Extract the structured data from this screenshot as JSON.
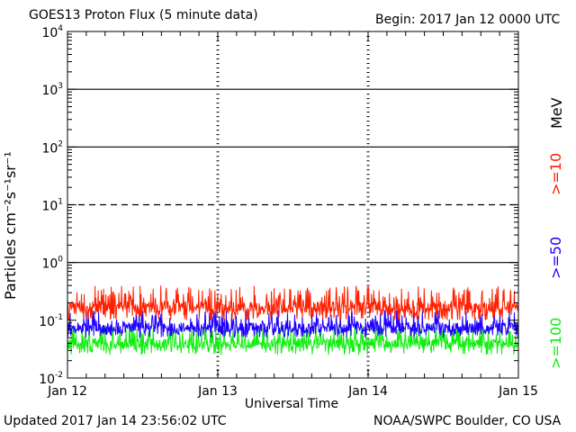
{
  "header": {
    "title": "GOES13 Proton Flux (5 minute data)",
    "begin": "Begin: 2017 Jan 12 0000 UTC"
  },
  "footer": {
    "updated": "Updated 2017 Jan 14 23:56:02 UTC",
    "credit": "NOAA/SWPC Boulder, CO USA"
  },
  "chart_data": {
    "type": "line",
    "title": "GOES13 Proton Flux (5 minute data)",
    "xlabel": "Universal Time",
    "ylabel": "Particles cm⁻²s⁻¹sr⁻¹",
    "yscale": "log",
    "ylim": [
      0.01,
      10000
    ],
    "xlim": [
      0,
      3
    ],
    "x_unit": "days since 2017 Jan 12 0000 UTC",
    "x_tick_labels": [
      "Jan 12",
      "Jan 13",
      "Jan 14",
      "Jan 15"
    ],
    "y_tick_labels": [
      {
        "base": "10",
        "exp": "-2"
      },
      {
        "base": "10",
        "exp": "-1"
      },
      {
        "base": "10",
        "exp": "0"
      },
      {
        "base": "10",
        "exp": "1"
      },
      {
        "base": "10",
        "exp": "2"
      },
      {
        "base": "10",
        "exp": "3"
      },
      {
        "base": "10",
        "exp": "4"
      }
    ],
    "unit_label": "MeV",
    "threshold_lines": [
      {
        "value": 1,
        "style": "solid"
      },
      {
        "value": 10,
        "style": "dashed"
      },
      {
        "value": 100,
        "style": "solid"
      },
      {
        "value": 1000,
        "style": "solid"
      }
    ],
    "series": [
      {
        "name": ">=10",
        "color": "#ff2000",
        "typical": 0.17,
        "low": 0.1,
        "high": 0.4
      },
      {
        "name": ">=50",
        "color": "#1f00ff",
        "typical": 0.075,
        "low": 0.05,
        "high": 0.15
      },
      {
        "name": ">=100",
        "color": "#10ee10",
        "typical": 0.04,
        "low": 0.025,
        "high": 0.08
      }
    ],
    "grid": false,
    "legend": "right side, rotated"
  }
}
